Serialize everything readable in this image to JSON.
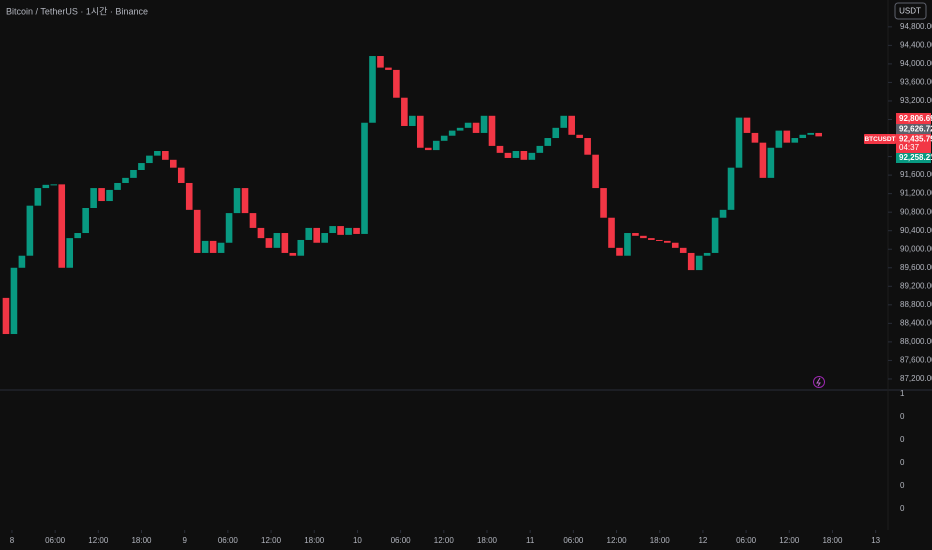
{
  "chart_data": {
    "type": "candlestick",
    "title": "Bitcoin / TetherUS · 1시간 · Binance",
    "currency_button": "USDT",
    "symbol_tag": "BTCUSDT",
    "up_color": "#089981",
    "down_color": "#f23645",
    "open": [
      88950,
      88170,
      89600,
      89860,
      90940,
      91320,
      91390,
      91400,
      89600,
      90240,
      90350,
      90890,
      91320,
      91040,
      91280,
      91430,
      91540,
      91710,
      91860,
      92020,
      92120,
      91930,
      91760,
      91430,
      90850,
      89920,
      90180,
      89920,
      90140,
      90780,
      91320,
      90780,
      90460,
      90240,
      90030,
      90350,
      89920,
      89860,
      90200,
      90460,
      90140,
      90350,
      90500,
      90310,
      90460,
      90330,
      92730,
      94170,
      93920,
      93870,
      93270,
      92660,
      92880,
      92190,
      92140,
      92340,
      92450,
      92560,
      92620,
      92730,
      92510,
      92880,
      92230,
      92080,
      91970,
      92120,
      91930,
      92080,
      92230,
      92400,
      92620,
      92880,
      92470,
      92400,
      92040,
      91320,
      90680,
      90030,
      89860,
      90350,
      90290,
      90240,
      90200,
      90180,
      90140,
      90030,
      89920,
      89550,
      89860,
      89920,
      90680,
      90850,
      91760,
      92840,
      92510,
      92300,
      91540,
      92190,
      92560,
      92300,
      92400,
      92470,
      92510
    ],
    "close": [
      88170,
      89600,
      89860,
      90940,
      91320,
      91390,
      91400,
      89600,
      90240,
      90350,
      90890,
      91320,
      91040,
      91280,
      91430,
      91540,
      91710,
      91860,
      92020,
      92120,
      91930,
      91760,
      91430,
      90850,
      89920,
      90180,
      89920,
      90140,
      90780,
      91320,
      90780,
      90460,
      90240,
      90030,
      90350,
      89920,
      89860,
      90200,
      90460,
      90140,
      90350,
      90500,
      90310,
      90460,
      90330,
      92730,
      94170,
      93920,
      93870,
      93270,
      92660,
      92880,
      92190,
      92140,
      92340,
      92450,
      92560,
      92620,
      92730,
      92510,
      92880,
      92230,
      92080,
      91970,
      92120,
      91930,
      92080,
      92230,
      92400,
      92620,
      92880,
      92470,
      92400,
      92040,
      91320,
      90680,
      90030,
      89860,
      90350,
      90290,
      90240,
      90200,
      90180,
      90140,
      90030,
      89920,
      89550,
      89860,
      89920,
      90680,
      90850,
      91760,
      92840,
      92510,
      92300,
      91540,
      92190,
      92560,
      92300,
      92400,
      92470,
      92510,
      92435.79
    ],
    "ylim": [
      95379,
      86962
    ],
    "yticks": [
      {
        "value": 94800,
        "label": "94,800.00"
      },
      {
        "value": 94400,
        "label": "94,400.00"
      },
      {
        "value": 94000,
        "label": "94,000.00"
      },
      {
        "value": 93600,
        "label": "93,600.00"
      },
      {
        "value": 93200,
        "label": "93,200.00"
      },
      {
        "value": 92800,
        "label": "92,800.00"
      },
      {
        "value": 92400,
        "label": "92,400.00"
      },
      {
        "value": 92000,
        "label": "92,000.00"
      },
      {
        "value": 91600,
        "label": "91,600.00"
      },
      {
        "value": 91200,
        "label": "91,200.00"
      },
      {
        "value": 90800,
        "label": "90,800.00"
      },
      {
        "value": 90400,
        "label": "90,400.00"
      },
      {
        "value": 90000,
        "label": "90,000.00"
      },
      {
        "value": 89600,
        "label": "89,600.00"
      },
      {
        "value": 89200,
        "label": "89,200.00"
      },
      {
        "value": 88800,
        "label": "88,800.00"
      },
      {
        "value": 88400,
        "label": "88,400.00"
      },
      {
        "value": 88000,
        "label": "88,000.00"
      },
      {
        "value": 87600,
        "label": "87,600.00"
      },
      {
        "value": 87200,
        "label": "87,200.00"
      }
    ],
    "xlim": [
      -0.75,
      110.7
    ],
    "xticks": [
      {
        "value": 0.75,
        "label": "8"
      },
      {
        "value": 6.17,
        "label": "06:00"
      },
      {
        "value": 11.59,
        "label": "12:00"
      },
      {
        "value": 17.01,
        "label": "18:00"
      },
      {
        "value": 22.43,
        "label": "9"
      },
      {
        "value": 27.85,
        "label": "06:00"
      },
      {
        "value": 33.27,
        "label": "12:00"
      },
      {
        "value": 38.69,
        "label": "18:00"
      },
      {
        "value": 44.11,
        "label": "10"
      },
      {
        "value": 49.53,
        "label": "06:00"
      },
      {
        "value": 54.95,
        "label": "12:00"
      },
      {
        "value": 60.37,
        "label": "18:00"
      },
      {
        "value": 65.79,
        "label": "11"
      },
      {
        "value": 71.21,
        "label": "06:00"
      },
      {
        "value": 76.63,
        "label": "12:00"
      },
      {
        "value": 82.05,
        "label": "18:00"
      },
      {
        "value": 87.47,
        "label": "12"
      },
      {
        "value": 92.89,
        "label": "06:00"
      },
      {
        "value": 98.31,
        "label": "12:00"
      },
      {
        "value": 103.73,
        "label": "18:00"
      },
      {
        "value": 109.15,
        "label": "13"
      }
    ],
    "price_tags": {
      "high": "92,806.69",
      "mid": "92,626.72",
      "last": "92,435.79",
      "countdown": "04:37",
      "low": "92,258.21"
    },
    "indicator_pane_labels": [
      1,
      0,
      0,
      0,
      0,
      0
    ]
  }
}
